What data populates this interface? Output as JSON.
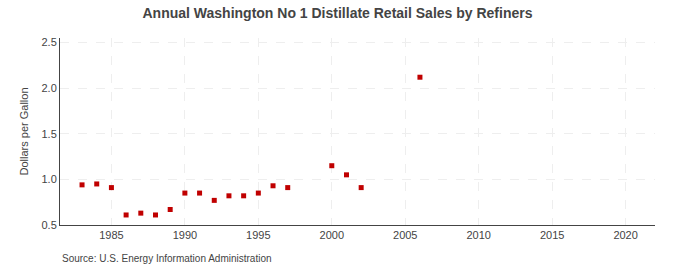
{
  "chart_data": {
    "type": "scatter",
    "title": "Annual Washington No 1 Distillate Retail Sales by Refiners",
    "ylabel": "Dollars per Gallon",
    "annotations": [
      "Source: U.S. Energy Information Administration"
    ],
    "x": [
      1983,
      1984,
      1985,
      1986,
      1987,
      1988,
      1989,
      1990,
      1991,
      1992,
      1993,
      1994,
      1995,
      1996,
      1997,
      2000,
      2001,
      2002,
      2006
    ],
    "values": [
      0.94,
      0.95,
      0.91,
      0.61,
      0.63,
      0.61,
      0.67,
      0.85,
      0.85,
      0.77,
      0.82,
      0.82,
      0.85,
      0.93,
      0.91,
      1.15,
      1.05,
      0.91,
      2.12
    ],
    "color": "#c00000",
    "marker": "square",
    "xlim": [
      1981.5,
      2022
    ],
    "ylim": [
      0.5,
      2.55
    ],
    "xticks": [
      1985,
      1990,
      1995,
      2000,
      2005,
      2010,
      2015,
      2020
    ],
    "yticks": [
      0.5,
      {
        "value": 1.0,
        "label": "1.0"
      },
      {
        "value": 1.5,
        "label": "1.5"
      },
      {
        "value": 2.0,
        "label": "2.0"
      },
      2.5
    ],
    "grid": true
  }
}
